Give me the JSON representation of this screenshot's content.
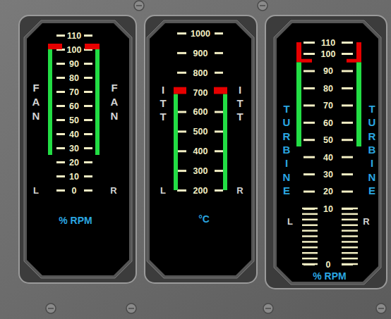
{
  "chart_data": [
    {
      "type": "bar",
      "title": "FAN",
      "categories": [
        "L",
        "R"
      ],
      "values": [
        100,
        100
      ],
      "low": [
        25,
        25
      ],
      "limit_low": [
        100,
        100
      ],
      "limit_high": [
        104,
        104
      ],
      "color": "#22dd44",
      "marker": "block",
      "ylim": [
        0,
        110
      ],
      "yticks": [
        0,
        10,
        20,
        30,
        40,
        50,
        60,
        70,
        80,
        90,
        100,
        110
      ],
      "y_label": "% RPM"
    },
    {
      "type": "bar",
      "title": "ITT",
      "categories": [
        "L",
        "R"
      ],
      "values": [
        690,
        690
      ],
      "low": [
        200,
        200
      ],
      "limit_low": [
        690,
        690
      ],
      "limit_high": [
        725,
        725
      ],
      "color": "#22dd44",
      "marker": "block",
      "ylim": [
        200,
        1000
      ],
      "yticks": [
        200,
        300,
        400,
        500,
        600,
        700,
        800,
        900,
        1000
      ],
      "y_label": "°C"
    },
    {
      "type": "bar",
      "title": "TURBINE",
      "categories": [
        "L",
        "R"
      ],
      "values": [
        95,
        95
      ],
      "low": [
        46,
        46
      ],
      "limit_low": [
        95,
        95
      ],
      "limit_high": [
        110,
        110
      ],
      "color": "#22dd44",
      "marker": "flag",
      "ylim": [
        0,
        110
      ],
      "yticks": [
        0,
        10,
        20,
        30,
        40,
        50,
        60,
        70,
        80,
        90,
        100,
        110
      ],
      "minor_yticks": [
        0,
        1,
        2,
        3,
        4,
        5,
        6,
        7,
        8,
        9,
        10
      ],
      "y_label": "% RPM"
    }
  ]
}
